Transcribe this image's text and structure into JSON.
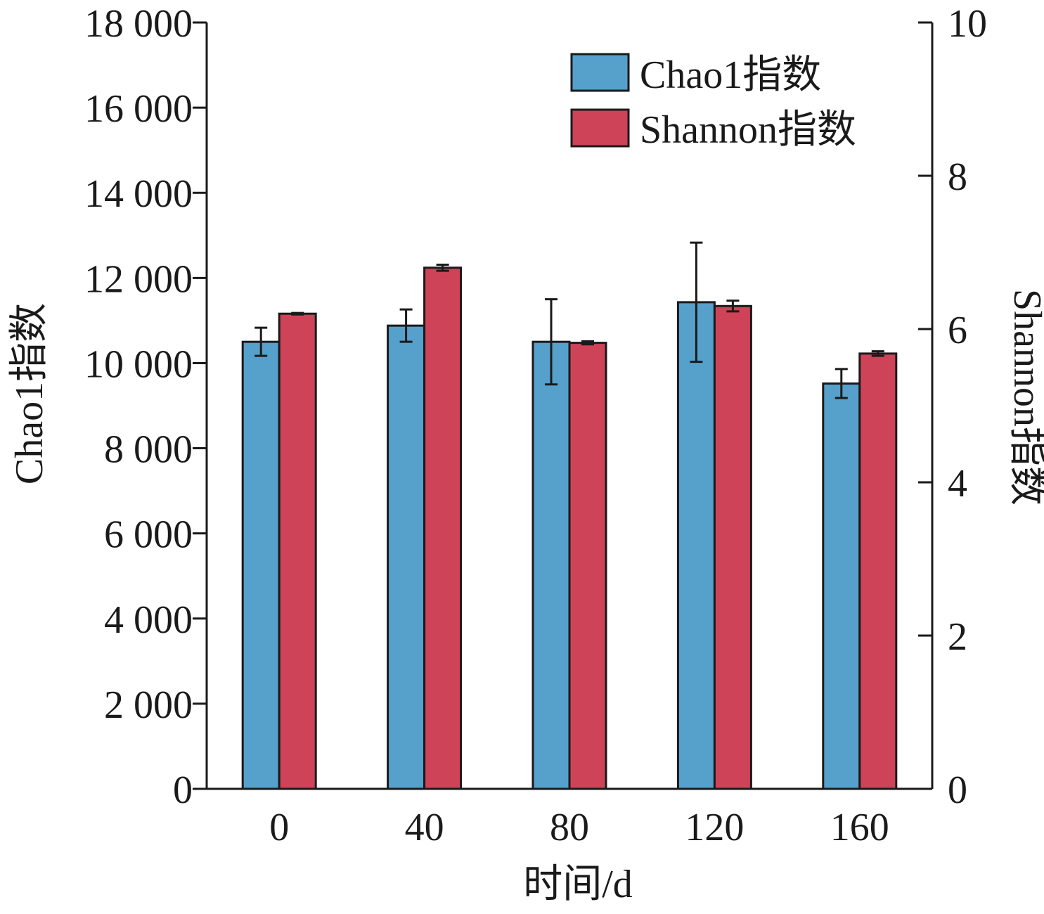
{
  "chart_data": {
    "type": "bar",
    "categories": [
      "0",
      "40",
      "80",
      "120",
      "160"
    ],
    "xlabel": "时间/d",
    "ylabel": "Chao1指数",
    "y2label": "Shannon指数",
    "ylim": [
      0,
      18000
    ],
    "y2lim": [
      0,
      10
    ],
    "yticks": [
      "0",
      "2 000",
      "4 000",
      "6 000",
      "8 000",
      "10 000",
      "12 000",
      "14 000",
      "16 000",
      "18 000"
    ],
    "y2ticks": [
      "0",
      "2",
      "4",
      "6",
      "8",
      "10"
    ],
    "legend_position": "top-right",
    "series": [
      {
        "name": "Chao1指数",
        "axis": "left",
        "color": "#56a0cc",
        "values": [
          10500,
          10880,
          10500,
          11430,
          9520
        ],
        "errors": [
          330,
          380,
          1000,
          1400,
          340
        ]
      },
      {
        "name": "Shannon指数",
        "axis": "right",
        "color": "#cf4358",
        "values": [
          6.2,
          6.8,
          5.82,
          6.3,
          5.68
        ],
        "errors": [
          0.01,
          0.04,
          0.02,
          0.07,
          0.03
        ]
      }
    ]
  }
}
